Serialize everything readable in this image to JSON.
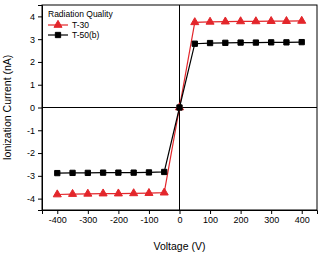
{
  "chart_data": {
    "type": "line",
    "x_label": "Voltage (V)",
    "y_label": "Ionization Current (nA)",
    "legend_title": "Radiation Quality",
    "legend": "top-left",
    "x": [
      -400,
      -350,
      -300,
      -250,
      -200,
      -150,
      -100,
      -50,
      0,
      50,
      100,
      150,
      200,
      250,
      300,
      350,
      400
    ],
    "series": [
      {
        "name": "T-30",
        "color": "#e3262b",
        "marker": "triangle",
        "values": [
          -3.82,
          -3.8,
          -3.79,
          -3.78,
          -3.78,
          -3.77,
          -3.76,
          -3.74,
          0,
          3.74,
          3.76,
          3.77,
          3.78,
          3.78,
          3.79,
          3.79,
          3.8
        ]
      },
      {
        "name": "T-50(b)",
        "color": "#000000",
        "marker": "square",
        "values": [
          -2.88,
          -2.87,
          -2.87,
          -2.86,
          -2.86,
          -2.86,
          -2.85,
          -2.83,
          0,
          2.8,
          2.83,
          2.84,
          2.85,
          2.85,
          2.86,
          2.86,
          2.87
        ]
      }
    ],
    "xlim": [
      -450,
      450
    ],
    "xticks": [
      -400,
      -300,
      -200,
      -100,
      0,
      100,
      200,
      300,
      400
    ],
    "ylim": [
      -4.5,
      4.5
    ],
    "yticks": [
      -4,
      -3,
      -2,
      -1,
      0,
      1,
      2,
      3,
      4
    ]
  }
}
